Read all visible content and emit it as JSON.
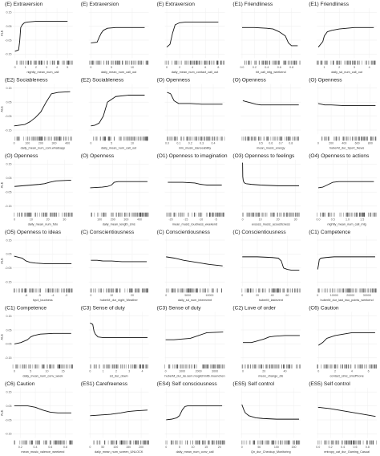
{
  "shared": {
    "ylabel": "ALE",
    "yticks": [
      "0.15",
      "0.05",
      "-0.05",
      "-0.15"
    ],
    "ylim": [
      -0.18,
      0.18
    ]
  },
  "chart_data": [
    {
      "type": "line",
      "title": "(E) Extraversion",
      "xlabel": "nightly_mean_num_call",
      "xticks": [
        "0",
        "1",
        "2",
        "3",
        "4",
        "5"
      ],
      "xlim": [
        -0.2,
        5.5
      ],
      "x": [
        0,
        0.35,
        0.45,
        0.55,
        0.7,
        0.9,
        1.2,
        2,
        3,
        4,
        5
      ],
      "y": [
        -0.13,
        -0.12,
        -0.06,
        0.04,
        0.06,
        0.075,
        0.08,
        0.085,
        0.085,
        0.085,
        0.085
      ]
    },
    {
      "type": "line",
      "title": "(E) Extraversion",
      "xlabel": "daily_mean_num_call_out",
      "xticks": [
        "0",
        "5",
        "10"
      ],
      "xlim": [
        -0.5,
        14
      ],
      "x": [
        0,
        1.5,
        2,
        2.5,
        3,
        4,
        6,
        9,
        13
      ],
      "y": [
        -0.07,
        -0.065,
        -0.03,
        0.0,
        0.02,
        0.035,
        0.04,
        0.04,
        0.04
      ]
    },
    {
      "type": "line",
      "title": "(E) Extraversion",
      "xlabel": "daily_mean_num_contact_call_out",
      "xticks": [
        "0",
        "2",
        "4",
        "6",
        "8"
      ],
      "xlim": [
        -0.3,
        9
      ],
      "x": [
        0,
        0.5,
        0.9,
        1.3,
        2,
        3,
        5,
        8
      ],
      "y": [
        -0.1,
        -0.08,
        0.0,
        0.06,
        0.075,
        0.08,
        0.08,
        0.08
      ]
    },
    {
      "type": "line",
      "title": "(E1) Friendliness",
      "xlabel": "hit_call_mtg_weekend",
      "xticks": [
        "0.0",
        "0.2",
        "0.4",
        "0.6",
        "0.8"
      ],
      "xlim": [
        -0.02,
        0.95
      ],
      "x": [
        0,
        0.2,
        0.4,
        0.5,
        0.6,
        0.7,
        0.75,
        0.8,
        0.9
      ],
      "y": [
        0.04,
        0.04,
        0.035,
        0.03,
        0.01,
        -0.02,
        -0.07,
        -0.09,
        -0.09
      ]
    },
    {
      "type": "line",
      "title": "(E1) Friendliness",
      "xlabel": "daily_sd_num_call_out",
      "xticks": [
        "1",
        "2",
        "3",
        "4"
      ],
      "xlim": [
        0.5,
        4.5
      ],
      "x": [
        0.6,
        0.9,
        1.0,
        1.2,
        1.5,
        2,
        3,
        4.3
      ],
      "y": [
        -0.1,
        -0.06,
        -0.02,
        0.01,
        0.02,
        0.03,
        0.04,
        0.04
      ]
    },
    {
      "type": "line",
      "title": "(E2) Sociableness",
      "xlabel": "daily_mean_num_com.whatsapp",
      "xticks": [
        "0",
        "100",
        "200",
        "300",
        "400"
      ],
      "xlim": [
        -10,
        440
      ],
      "x": [
        0,
        80,
        120,
        160,
        200,
        240,
        280,
        330,
        420
      ],
      "y": [
        -0.12,
        -0.11,
        -0.09,
        -0.06,
        -0.02,
        0.05,
        0.11,
        0.12,
        0.125
      ]
    },
    {
      "type": "line",
      "title": "(E2) Sociableness",
      "xlabel": "daily_mean_num_call_out",
      "xticks": [
        "0",
        "5",
        "10"
      ],
      "xlim": [
        -0.5,
        14
      ],
      "x": [
        0,
        1,
        2,
        3,
        4,
        6,
        9,
        13
      ],
      "y": [
        -0.12,
        -0.115,
        -0.1,
        -0.05,
        0.05,
        0.09,
        0.1,
        0.1
      ]
    },
    {
      "type": "line",
      "title": "(O) Openness",
      "xlabel": "min_music_danceability",
      "xticks": [
        "0.0",
        "0.1",
        "0.2",
        "0.3",
        "0.4"
      ],
      "xlim": [
        -0.02,
        0.5
      ],
      "x": [
        0,
        0.03,
        0.06,
        0.1,
        0.2,
        0.3,
        0.48
      ],
      "y": [
        0.12,
        0.11,
        0.06,
        0.04,
        0.04,
        0.035,
        0.035
      ]
    },
    {
      "type": "line",
      "title": "(O) Openness",
      "xlabel": "mean_music_energy",
      "xticks": [
        "0.5",
        "0.6",
        "0.7",
        "0.8"
      ],
      "xlim": [
        0.3,
        0.9
      ],
      "x": [
        0.32,
        0.4,
        0.45,
        0.5,
        0.6,
        0.7,
        0.88
      ],
      "y": [
        0.06,
        0.045,
        0.035,
        0.03,
        0.03,
        0.03,
        0.03
      ]
    },
    {
      "type": "line",
      "title": "(O) Openness",
      "xlabel": "huberM_dur_Sport_News",
      "xticks": [
        "0",
        "200",
        "400",
        "600",
        "800"
      ],
      "xlim": [
        -20,
        900
      ],
      "x": [
        0,
        50,
        100,
        200,
        400,
        600,
        880
      ],
      "y": [
        0.04,
        0.035,
        0.03,
        0.03,
        0.025,
        0.025,
        0.025
      ]
    },
    {
      "type": "line",
      "title": "(O) Openness",
      "xlabel": "daily_mean_num_foto",
      "xticks": [
        "0",
        "10",
        "20",
        "30"
      ],
      "xlim": [
        -1,
        35
      ],
      "x": [
        0,
        5,
        10,
        15,
        18,
        21,
        25,
        34
      ],
      "y": [
        -0.01,
        -0.005,
        0.0,
        0.005,
        0.01,
        0.02,
        0.03,
        0.035
      ]
    },
    {
      "type": "line",
      "title": "(O) Openness",
      "xlabel": "daily_mean_length_sms",
      "xticks": [
        "100",
        "200",
        "300",
        "400"
      ],
      "xlim": [
        20,
        470
      ],
      "x": [
        30,
        120,
        160,
        190,
        210,
        240,
        300,
        460
      ],
      "y": [
        -0.02,
        -0.015,
        -0.01,
        0.0,
        0.02,
        0.025,
        0.025,
        0.025
      ]
    },
    {
      "type": "line",
      "title": "(O1) Openness to imagination",
      "xlabel": "mean_music_loudness_weekend",
      "xticks": [
        "-20",
        "-15",
        "-10",
        "-5"
      ],
      "xlim": [
        -22,
        -2
      ],
      "x": [
        -21,
        -16,
        -12,
        -10,
        -8,
        -6,
        -3
      ],
      "y": [
        0.02,
        0.02,
        0.015,
        0.005,
        0.0,
        0.0,
        0.0
      ]
    },
    {
      "type": "line",
      "title": "(O3) Openness to feelings",
      "xlabel": "excess_music_acousticness",
      "xticks": [
        "0",
        "10",
        "20",
        "30"
      ],
      "xlim": [
        -1,
        33
      ],
      "x": [
        0,
        0.1,
        0.4,
        1,
        2,
        5,
        10,
        20,
        32
      ],
      "y": [
        0.16,
        0.06,
        0.03,
        0.015,
        0.01,
        0.005,
        0.0,
        -0.005,
        -0.005
      ]
    },
    {
      "type": "line",
      "title": "(O4) Openness to actions",
      "xlabel": "nightly_mean_num_call_mtg",
      "xticks": [
        "0.0",
        "0.5",
        "1.0",
        "1.5"
      ],
      "xlim": [
        -0.05,
        2.0
      ],
      "x": [
        0,
        0.15,
        0.3,
        0.4,
        0.5,
        0.7,
        1.0,
        1.9
      ],
      "y": [
        -0.02,
        -0.015,
        0.0,
        0.01,
        0.02,
        0.025,
        0.025,
        0.025
      ]
    },
    {
      "type": "line",
      "title": "(O5) Openness to ideas",
      "xlabel": "fqv4_loudness",
      "xticks": [
        "-6",
        "-5",
        "-4",
        "-3"
      ],
      "xlim": [
        -7,
        -2.5
      ],
      "x": [
        -6.9,
        -6.3,
        -6.0,
        -5.7,
        -5.3,
        -4.5,
        -3.5,
        -2.6
      ],
      "y": [
        0.035,
        0.02,
        0.0,
        -0.01,
        -0.015,
        -0.02,
        -0.02,
        -0.02
      ]
    },
    {
      "type": "line",
      "title": "(C) Conscientiousness",
      "xlabel": "huberM_dur_night_Weather",
      "xticks": [
        "0",
        "10",
        "20"
      ],
      "xlim": [
        -1,
        28
      ],
      "x": [
        0,
        3,
        6,
        10,
        15,
        20,
        27
      ],
      "y": [
        0.005,
        0.005,
        0.0,
        0.0,
        -0.005,
        -0.005,
        -0.005
      ]
    },
    {
      "type": "line",
      "title": "(C) Conscientiousness",
      "xlabel": "daily_sd_num_interevent",
      "xticks": [
        "0",
        "5000",
        "10000"
      ],
      "xlim": [
        -300,
        13500
      ],
      "x": [
        0,
        2000,
        4000,
        6000,
        8000,
        10000,
        13000
      ],
      "y": [
        0.03,
        0.02,
        0.005,
        -0.005,
        -0.015,
        -0.025,
        -0.035
      ]
    },
    {
      "type": "line",
      "title": "(C) Conscientiousness",
      "xlabel": "huberM_lastevent",
      "xticks": [
        "0",
        "20",
        "40",
        "60"
      ],
      "xlim": [
        -2,
        78
      ],
      "x": [
        0,
        20,
        40,
        48,
        52,
        55,
        60,
        65,
        76
      ],
      "y": [
        0.03,
        0.03,
        0.025,
        0.02,
        0.0,
        -0.05,
        -0.06,
        -0.065,
        -0.065
      ]
    },
    {
      "type": "line",
      "title": "(C1) Competence",
      "xlabel": "huberM_dur_last_two_points_weekend",
      "xticks": [
        "0",
        "10000",
        "20000",
        "30000"
      ],
      "xlim": [
        -500,
        36000
      ],
      "x": [
        0,
        500,
        1000,
        2000,
        5000,
        10000,
        20000,
        35000
      ],
      "y": [
        -0.06,
        -0.03,
        0.01,
        0.02,
        0.025,
        0.03,
        0.03,
        0.03
      ]
    },
    {
      "type": "line",
      "title": "(C1) Competence",
      "xlabel": "daily_mean_num_conv_week",
      "xticks": [
        "0",
        "5",
        "10",
        "15"
      ],
      "xlim": [
        -0.5,
        18
      ],
      "x": [
        0,
        2,
        4,
        5,
        6,
        8,
        12,
        17.5
      ],
      "y": [
        -0.05,
        -0.04,
        -0.02,
        0.0,
        0.01,
        0.02,
        0.025,
        0.025
      ]
    },
    {
      "type": "line",
      "title": "(C3) Sense of duty",
      "xlabel": "sd_dur_down",
      "xticks": [
        "0",
        "1",
        "2",
        "3",
        "4"
      ],
      "xlim": [
        -0.1,
        4.5
      ],
      "x": [
        0,
        0.2,
        0.3,
        0.4,
        0.6,
        1,
        2,
        3,
        4.4
      ],
      "y": [
        0.1,
        0.09,
        0.04,
        0.02,
        0.0,
        -0.005,
        -0.005,
        -0.005,
        -0.005
      ]
    },
    {
      "type": "line",
      "title": "(C3) Sense of duty",
      "xlabel": "huberM_dur_de.sem.moglichmitb.muenchen",
      "xticks": [
        "0",
        "1000",
        "2000",
        "3000"
      ],
      "xlim": [
        -50,
        3600
      ],
      "x": [
        0,
        500,
        1000,
        1500,
        2000,
        2500,
        3500
      ],
      "y": [
        -0.02,
        -0.02,
        -0.015,
        -0.01,
        0.01,
        0.03,
        0.035
      ]
    },
    {
      "type": "line",
      "title": "(C2) Love of order",
      "xlabel": "mean_change_dis",
      "xticks": [
        "0",
        "20",
        "40"
      ],
      "xlim": [
        -2,
        55
      ],
      "x": [
        0,
        8,
        13,
        20,
        25,
        30,
        40,
        54
      ],
      "y": [
        -0.04,
        -0.04,
        -0.03,
        -0.015,
        0.0,
        0.005,
        0.01,
        0.01
      ]
    },
    {
      "type": "line",
      "title": "(C6) Caution",
      "xlabel": "contact_simc_smsPhone",
      "xticks": [
        "0",
        "2",
        "4",
        "6"
      ],
      "xlim": [
        -0.2,
        7
      ],
      "x": [
        0,
        0.5,
        1,
        2,
        3,
        4,
        5,
        6.8
      ],
      "y": [
        -0.06,
        -0.04,
        -0.01,
        0.01,
        0.02,
        0.03,
        0.03,
        0.03
      ]
    },
    {
      "type": "line",
      "title": "(C6) Caution",
      "xlabel": "mean_music_valence_weekend",
      "xticks": [
        "0.2",
        "0.4",
        "0.6",
        "0.8"
      ],
      "xlim": [
        0.1,
        0.9
      ],
      "x": [
        0.12,
        0.3,
        0.35,
        0.4,
        0.5,
        0.6,
        0.7,
        0.88
      ],
      "y": [
        0.05,
        0.05,
        0.045,
        0.04,
        0.02,
        0.005,
        0.0,
        0.0
      ]
    },
    {
      "type": "line",
      "title": "(ES1) Carefreeness",
      "xlabel": "daily_mean_num_screen_UNLOCK",
      "xticks": [
        "0",
        "50",
        "100",
        "150",
        "200"
      ],
      "xlim": [
        -5,
        230
      ],
      "x": [
        0,
        40,
        80,
        100,
        120,
        150,
        180,
        225
      ],
      "y": [
        -0.02,
        -0.015,
        -0.01,
        -0.005,
        0.0,
        0.01,
        0.015,
        0.02
      ]
    },
    {
      "type": "line",
      "title": "(ES4) Self consciousness",
      "xlabel": "daily_mean_num_conv_call",
      "xticks": [
        "0",
        "5",
        "10",
        "15",
        "20"
      ],
      "xlim": [
        -0.5,
        22
      ],
      "x": [
        0,
        2,
        4,
        5,
        6,
        7,
        8,
        12,
        21
      ],
      "y": [
        -0.05,
        -0.045,
        -0.035,
        -0.02,
        0.02,
        0.045,
        0.05,
        0.05,
        0.05
      ]
    },
    {
      "type": "line",
      "title": "(ES5) Self control",
      "xlabel": "Qn_dur_Checkup_Monitoring",
      "xticks": [
        "0",
        "50",
        "100",
        "150"
      ],
      "xlim": [
        -3,
        170
      ],
      "x": [
        0,
        3,
        6,
        10,
        20,
        40,
        60,
        100,
        165
      ],
      "y": [
        0.06,
        0.04,
        0.02,
        0.0,
        -0.02,
        -0.035,
        -0.04,
        -0.045,
        -0.045
      ]
    },
    {
      "type": "line",
      "title": "(ES5) Self control",
      "xlabel": "entropy_cat_dur_Gaming_Casual",
      "xticks": [
        "0.0",
        "0.2",
        "0.4",
        "0.6",
        "0.8"
      ],
      "xlim": [
        -0.02,
        0.95
      ],
      "x": [
        0,
        0.2,
        0.4,
        0.6,
        0.8,
        0.93
      ],
      "y": [
        0.04,
        0.03,
        0.015,
        0.0,
        -0.015,
        -0.025
      ]
    }
  ]
}
